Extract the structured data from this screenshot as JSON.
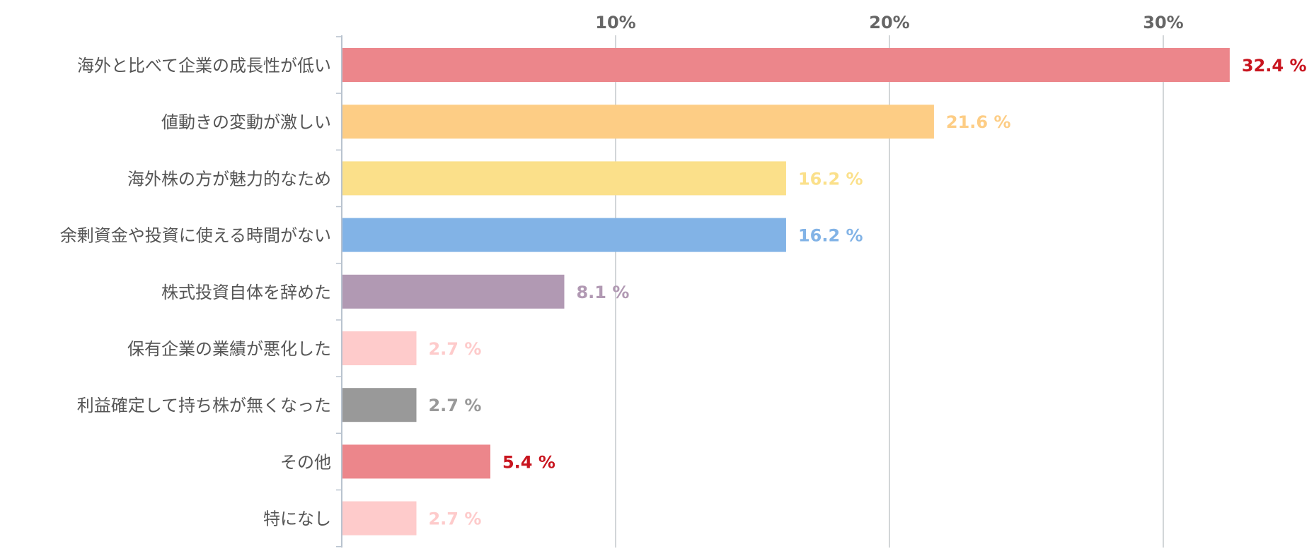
{
  "chart_data": {
    "type": "bar",
    "orientation": "horizontal",
    "categories": [
      "海外と比べて企業の成長性が低い",
      "値動きの変動が激しい",
      "海外株の方が魅力的なため",
      "余剰資金や投資に使える時間がない",
      "株式投資自体を辞めた",
      "保有企業の業績が悪化した",
      "利益確定して持ち株が無くなった",
      "その他",
      "特になし"
    ],
    "values": [
      32.4,
      21.6,
      16.2,
      16.2,
      8.1,
      2.7,
      2.7,
      5.4,
      2.7
    ],
    "value_labels": [
      "32.4 %",
      "21.6 %",
      "16.2 %",
      "16.2 %",
      "8.1 %",
      "2.7 %",
      "2.7 %",
      "5.4 %",
      "2.7 %"
    ],
    "bar_colors": [
      "#ec868b",
      "#fdcd85",
      "#fbe08a",
      "#82b3e6",
      "#b199b3",
      "#fecbcb",
      "#999999",
      "#ec868b",
      "#fecbcb"
    ],
    "label_colors": [
      "#c8141e",
      "#fdcd85",
      "#fbe08a",
      "#82b3e6",
      "#b199b3",
      "#fecbcb",
      "#999999",
      "#c8141e",
      "#fecbcb"
    ],
    "x_ticks": [
      10,
      20,
      30
    ],
    "x_tick_labels": [
      "10%",
      "20%",
      "30%"
    ],
    "xlim": [
      0,
      35
    ],
    "grid": true,
    "axis_position": "top",
    "title": "",
    "xlabel": "",
    "ylabel": ""
  }
}
